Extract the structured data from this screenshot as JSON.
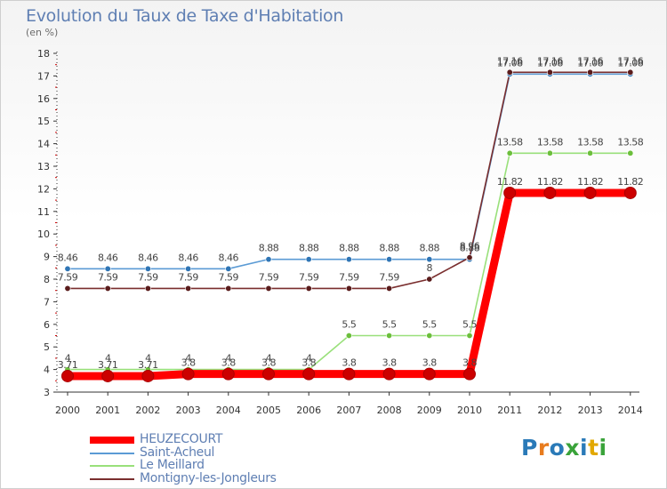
{
  "header": {
    "title": "Evolution du Taux de Taxe d'Habitation",
    "subtitle": "(en %)"
  },
  "logo": {
    "text": "Proxiti",
    "colors": [
      "#2a7ab8",
      "#e87c1e",
      "#2a7ab8",
      "#3aa33a",
      "#2a7ab8",
      "#e2a800",
      "#3aa33a"
    ]
  },
  "chart_data": {
    "type": "line",
    "title": "Evolution du Taux de Taxe d'Habitation",
    "ylabel": "(en %)",
    "xlabel": "",
    "x": [
      "2000",
      "2001",
      "2002",
      "2003",
      "2004",
      "2005",
      "2006",
      "2007",
      "2008",
      "2009",
      "2010",
      "2011",
      "2012",
      "2013",
      "2014"
    ],
    "ylim": [
      3,
      18
    ],
    "yticks": [
      "3",
      "4",
      "5",
      "6",
      "7",
      "8",
      "9",
      "10",
      "11",
      "12",
      "13",
      "14",
      "15",
      "16",
      "17",
      "18"
    ],
    "grid": false,
    "legend_position": "bottom-left",
    "series": [
      {
        "name": "HEUZECOURT",
        "color": "#ff0000",
        "marker": "#cc0000",
        "values": [
          3.71,
          3.71,
          3.71,
          3.8,
          3.8,
          3.8,
          3.8,
          3.8,
          3.8,
          3.8,
          3.8,
          11.82,
          11.82,
          11.82,
          11.82
        ],
        "labels": [
          "3.71",
          "3.71",
          "3.71",
          "3.8",
          "3.8",
          "3.8",
          "3.8",
          "3.8",
          "3.8",
          "3.8",
          "3.8",
          "11.82",
          "11.82",
          "11.82",
          "11.82"
        ]
      },
      {
        "name": "Saint-Acheul",
        "color": "#5b9bd5",
        "marker": "#2f75b5",
        "values": [
          8.46,
          8.46,
          8.46,
          8.46,
          8.46,
          8.88,
          8.88,
          8.88,
          8.88,
          8.88,
          8.88,
          17.08,
          17.08,
          17.08,
          17.08
        ],
        "labels": [
          "8.46",
          "8.46",
          "8.46",
          "8.46",
          "8.46",
          "8.88",
          "8.88",
          "8.88",
          "8.88",
          "8.88",
          "8.88",
          "17.08",
          "17.08",
          "17.08",
          "17.08"
        ]
      },
      {
        "name": "Le Meillard",
        "color": "#99e07a",
        "marker": "#6cbf3c",
        "values": [
          4,
          4,
          4,
          4,
          4,
          4,
          4,
          5.5,
          5.5,
          5.5,
          5.5,
          13.58,
          13.58,
          13.58,
          13.58
        ],
        "labels": [
          "4",
          "4",
          "4",
          "4",
          "4",
          "4",
          "4",
          "5.5",
          "5.5",
          "5.5",
          "5.5",
          "13.58",
          "13.58",
          "13.58",
          "13.58"
        ]
      },
      {
        "name": "Montigny-les-Jongleurs",
        "color": "#7a2e2e",
        "marker": "#5a1c1c",
        "values": [
          7.59,
          7.59,
          7.59,
          7.59,
          7.59,
          7.59,
          7.59,
          7.59,
          7.59,
          8,
          8.96,
          17.16,
          17.16,
          17.16,
          17.16
        ],
        "labels": [
          "7.59",
          "7.59",
          "7.59",
          "7.59",
          "7.59",
          "7.59",
          "7.59",
          "7.59",
          "7.59",
          "8",
          "8.96",
          "17.16",
          "17.16",
          "17.16",
          "17.16"
        ]
      }
    ]
  }
}
